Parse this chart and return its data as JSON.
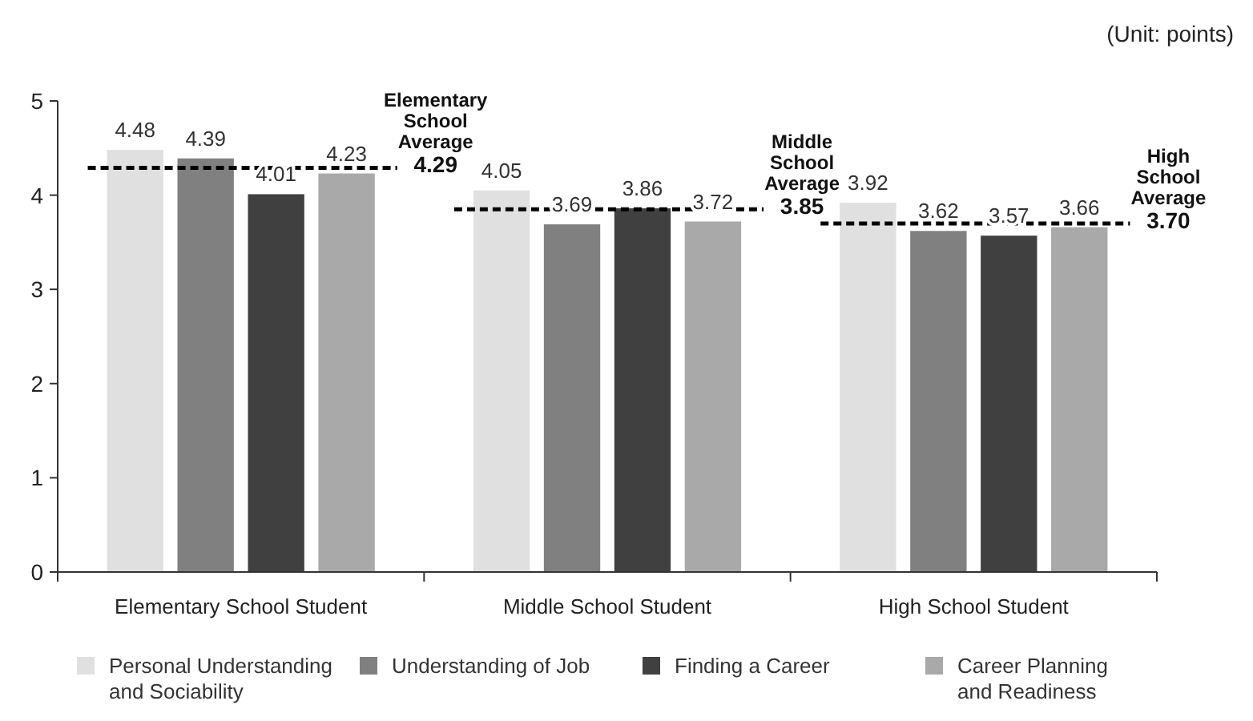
{
  "chart_data": {
    "type": "bar",
    "categories": [
      "Elementary School Student",
      "Middle School Student",
      "High School Student"
    ],
    "series": [
      {
        "name": "Personal Understanding and Sociability",
        "color": "#e0e0e0",
        "values": [
          4.48,
          4.05,
          3.92
        ]
      },
      {
        "name": "Understanding of Job",
        "color": "#808080",
        "values": [
          4.39,
          3.69,
          3.62
        ]
      },
      {
        "name": "Finding a Career",
        "color": "#404040",
        "values": [
          4.01,
          3.86,
          3.57
        ]
      },
      {
        "name": "Career Planning and Readiness",
        "color": "#a9a9a9",
        "values": [
          4.23,
          3.72,
          3.66
        ]
      }
    ],
    "ylim": [
      0,
      5
    ],
    "yticks": [
      0,
      1,
      2,
      3,
      4,
      5
    ],
    "grid": false,
    "data_labels": true,
    "legend": "bottom",
    "ref_lines": [
      {
        "axis": "y",
        "value": 4.29,
        "label": "Elementary School Average 4.29",
        "color": "#000000",
        "line_style": "dashed"
      },
      {
        "axis": "y",
        "value": 3.85,
        "label": "Middle School Average 3.85",
        "color": "#000000",
        "line_style": "dashed"
      },
      {
        "axis": "y",
        "value": 3.7,
        "label": "High School Average 3.70",
        "color": "#000000",
        "line_style": "dashed"
      }
    ],
    "annotations": [
      "(Unit: points)"
    ]
  }
}
